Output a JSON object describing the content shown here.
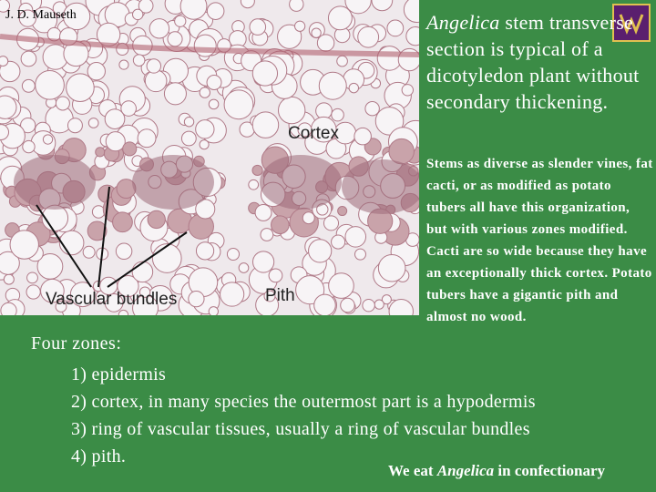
{
  "credit": "J. D. Mauseth",
  "title": {
    "italic": "Angelica",
    "rest": " stem transverse section is typical of a dicotyledon plant without secondary thickening."
  },
  "image_labels": {
    "cortex": "Cortex",
    "vascular": "Vascular bundles",
    "pith": "Pith"
  },
  "body": "Stems as diverse as slender vines, fat cacti, or as modified as potato tubers all have this organization, but with various zones modified. Cacti are so wide because they have an exceptionally thick cortex.  Potato tubers have a gigantic pith and almost no wood.",
  "zones": {
    "heading": "Four zones:",
    "items": [
      "1) epidermis",
      "2) cortex, in many species the outermost part is a hypodermis",
      "3) ring of vascular tissues, usually a ring of vascular bundles",
      "4) pith."
    ]
  },
  "footer": {
    "before": "We eat ",
    "italic": "Angelica",
    "after": " in confectionary"
  }
}
